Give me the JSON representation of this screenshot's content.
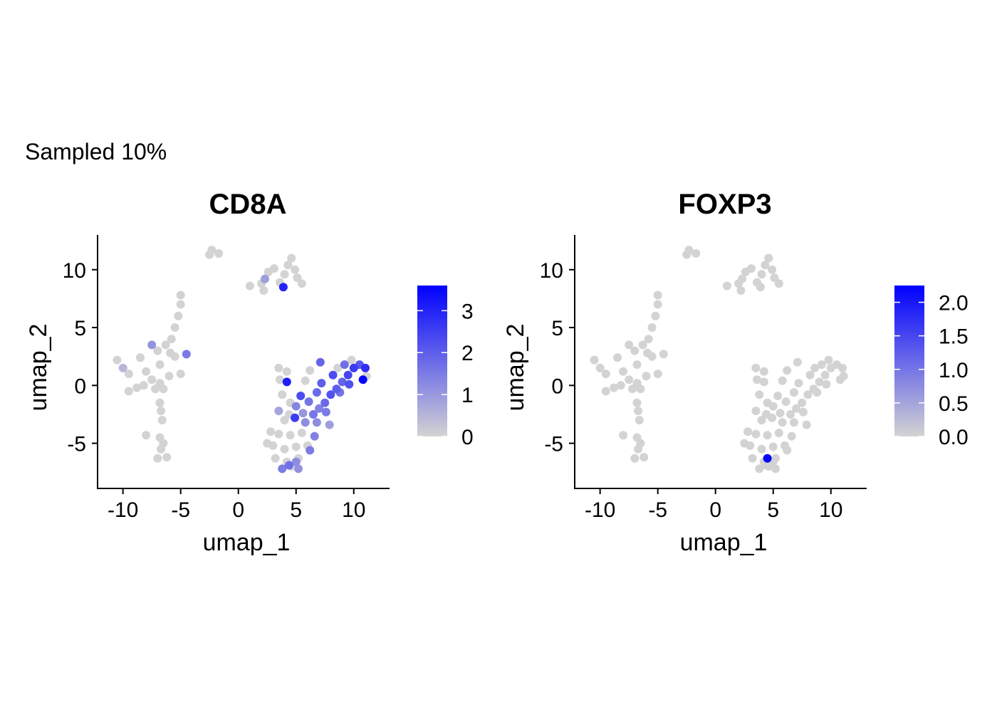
{
  "figure": {
    "caption": "Sampled 10%"
  },
  "colors": {
    "low": "#d3d3d3",
    "high": "#0000ff",
    "axis": "#000000",
    "text": "#000000"
  },
  "chart_data": [
    {
      "type": "scatter",
      "title": "CD8A",
      "xlabel": "umap_1",
      "ylabel": "umap_2",
      "xlim": [
        -12.2,
        13.1
      ],
      "ylim": [
        -8.9,
        13.0
      ],
      "xticks": [
        -10,
        -5,
        0,
        5,
        10
      ],
      "xtick_labels": [
        "-10",
        "-5",
        "0",
        "5",
        "10"
      ],
      "yticks": [
        -5,
        0,
        5,
        10
      ],
      "ytick_labels": [
        "-5",
        "0",
        "5",
        "10"
      ],
      "legend": {
        "placement": "right",
        "min": 0,
        "max": 3.6,
        "ticks": [
          0,
          1,
          2,
          3
        ],
        "tick_labels": [
          "0",
          "1",
          "2",
          "3"
        ]
      },
      "points": [
        [
          -8,
          1.2,
          0
        ],
        [
          -7.5,
          0.5,
          0
        ],
        [
          -6.8,
          1.8,
          0
        ],
        [
          -8.5,
          2.4,
          0
        ],
        [
          -9.5,
          1,
          0
        ],
        [
          -6,
          0.8,
          0
        ],
        [
          -7,
          3,
          0
        ],
        [
          -10,
          1.5,
          0.5
        ],
        [
          -7.2,
          -0.3,
          0
        ],
        [
          -8.8,
          -0.2,
          0
        ],
        [
          -6.5,
          -0.3,
          0
        ],
        [
          -5,
          1,
          0
        ],
        [
          -5.5,
          2.5,
          0
        ],
        [
          -10.5,
          2.2,
          0
        ],
        [
          -9.5,
          -0.5,
          0
        ],
        [
          -6.3,
          3.5,
          0
        ],
        [
          -4.5,
          2.7,
          1.5
        ],
        [
          -7.5,
          3.5,
          1.1
        ],
        [
          -8.2,
          0,
          0
        ],
        [
          -6.8,
          0.2,
          0
        ],
        [
          -6.8,
          -1.5,
          0
        ],
        [
          -6.6,
          -3,
          0
        ],
        [
          -6.8,
          -4.5,
          0
        ],
        [
          -6.7,
          -5.5,
          0
        ],
        [
          -7,
          -6.3,
          0
        ],
        [
          -6.2,
          -6.2,
          0
        ],
        [
          -6.5,
          -5,
          0
        ],
        [
          -8,
          -4.3,
          0
        ],
        [
          -6.7,
          -2.2,
          0
        ],
        [
          -5.8,
          4,
          0
        ],
        [
          -5.5,
          5,
          0
        ],
        [
          -5.2,
          6,
          0
        ],
        [
          -5,
          7,
          0
        ],
        [
          -5,
          7.8,
          0
        ],
        [
          -5.9,
          2.8,
          0
        ],
        [
          -2.3,
          11.7,
          0
        ],
        [
          -2.5,
          11.3,
          0
        ],
        [
          -1.7,
          11.4,
          0
        ],
        [
          1,
          8.6,
          0
        ],
        [
          2,
          8.8,
          0
        ],
        [
          2.3,
          9.2,
          0.9
        ],
        [
          2.6,
          9.8,
          0
        ],
        [
          3.1,
          10.1,
          0
        ],
        [
          3.6,
          8.9,
          0
        ],
        [
          4,
          9.6,
          0
        ],
        [
          4.3,
          10.4,
          0
        ],
        [
          4.6,
          11,
          0
        ],
        [
          4.9,
          10,
          0
        ],
        [
          5.1,
          9.3,
          0
        ],
        [
          3.9,
          8.5,
          3
        ],
        [
          2.2,
          8.2,
          0
        ],
        [
          5.5,
          8.8,
          0
        ],
        [
          3.5,
          1.5,
          0
        ],
        [
          3.6,
          0.5,
          0
        ],
        [
          4.2,
          1.2,
          0
        ],
        [
          3.8,
          -0.8,
          0
        ],
        [
          4.5,
          -1.5,
          0
        ],
        [
          4.4,
          -2.5,
          0
        ],
        [
          4,
          -3,
          0
        ],
        [
          2.8,
          -4,
          0
        ],
        [
          2.5,
          -5,
          0
        ],
        [
          3.5,
          -4.2,
          0
        ],
        [
          4.5,
          -4.3,
          0
        ],
        [
          5.5,
          -4.1,
          0
        ],
        [
          3,
          -5.2,
          0
        ],
        [
          4,
          -5.5,
          0
        ],
        [
          5,
          -5.3,
          0
        ],
        [
          6,
          -5.2,
          0
        ],
        [
          3.2,
          -6.3,
          0
        ],
        [
          4.2,
          -6.6,
          0
        ],
        [
          5.2,
          -6.3,
          0
        ],
        [
          4.6,
          -7,
          0
        ],
        [
          3.8,
          -7.2,
          1.5
        ],
        [
          5.2,
          -7.2,
          1.1
        ],
        [
          5.8,
          -3.2,
          1.2
        ],
        [
          6.5,
          -2.5,
          1.6
        ],
        [
          7,
          -2,
          1.4
        ],
        [
          7.5,
          -1.5,
          1.8
        ],
        [
          8,
          -0.8,
          2.2
        ],
        [
          8.5,
          -0.3,
          2
        ],
        [
          9,
          0.3,
          1.9
        ],
        [
          9.5,
          0.9,
          2.4
        ],
        [
          10,
          1.5,
          2.6
        ],
        [
          10.5,
          1.8,
          2.1
        ],
        [
          11,
          1.5,
          2.8
        ],
        [
          10.8,
          0.5,
          3.5
        ],
        [
          9.2,
          1.8,
          1.7
        ],
        [
          8.2,
          0.9,
          2.3
        ],
        [
          5,
          -1.8,
          1.3
        ],
        [
          6.1,
          -1.4,
          1.6
        ],
        [
          6.8,
          -0.6,
          1.8
        ],
        [
          7.2,
          0.2,
          2
        ],
        [
          5.4,
          -0.9,
          2.3
        ],
        [
          4.2,
          0.3,
          3.1
        ],
        [
          7.6,
          -2.3,
          1.5
        ],
        [
          6.8,
          -3.2,
          1.2
        ],
        [
          6.6,
          -4.4,
          1.4
        ],
        [
          6.2,
          -5.6,
          1.5
        ],
        [
          8.8,
          -0.6,
          1.6
        ],
        [
          9.6,
          0.1,
          2.2
        ],
        [
          4.9,
          -2.8,
          2.6
        ],
        [
          5.6,
          -2.4,
          1
        ],
        [
          3.5,
          -2.2,
          0.8
        ],
        [
          7.1,
          2,
          1.9
        ],
        [
          6.2,
          1.3,
          0
        ],
        [
          5.8,
          0.4,
          0
        ],
        [
          9.8,
          2.2,
          0
        ],
        [
          11.1,
          0.8,
          0
        ],
        [
          8.6,
          1.5,
          0
        ],
        [
          7.9,
          -3.4,
          0.9
        ],
        [
          5,
          -6.6,
          1.2
        ],
        [
          4.4,
          -6.9,
          1.7
        ]
      ]
    },
    {
      "type": "scatter",
      "title": "FOXP3",
      "xlabel": "umap_1",
      "ylabel": "umap_2",
      "xlim": [
        -12.2,
        13.1
      ],
      "ylim": [
        -8.9,
        13.0
      ],
      "xticks": [
        -10,
        -5,
        0,
        5,
        10
      ],
      "xtick_labels": [
        "-10",
        "-5",
        "0",
        "5",
        "10"
      ],
      "yticks": [
        -5,
        0,
        5,
        10
      ],
      "ytick_labels": [
        "-5",
        "0",
        "5",
        "10"
      ],
      "legend": {
        "placement": "right",
        "min": 0,
        "max": 2.25,
        "ticks": [
          0,
          0.5,
          1,
          1.5,
          2
        ],
        "tick_labels": [
          "0.0",
          "0.5",
          "1.0",
          "1.5",
          "2.0"
        ]
      },
      "points": [
        [
          -8,
          1.2,
          0
        ],
        [
          -7.5,
          0.5,
          0
        ],
        [
          -6.8,
          1.8,
          0
        ],
        [
          -8.5,
          2.4,
          0
        ],
        [
          -9.5,
          1,
          0
        ],
        [
          -6,
          0.8,
          0
        ],
        [
          -7,
          3,
          0
        ],
        [
          -10,
          1.5,
          0
        ],
        [
          -7.2,
          -0.3,
          0
        ],
        [
          -8.8,
          -0.2,
          0
        ],
        [
          -6.5,
          -0.3,
          0
        ],
        [
          -5,
          1,
          0
        ],
        [
          -5.5,
          2.5,
          0
        ],
        [
          -10.5,
          2.2,
          0
        ],
        [
          -9.5,
          -0.5,
          0
        ],
        [
          -6.3,
          3.5,
          0
        ],
        [
          -4.5,
          2.7,
          0
        ],
        [
          -7.5,
          3.5,
          0
        ],
        [
          -8.2,
          0,
          0
        ],
        [
          -6.8,
          0.2,
          0
        ],
        [
          -6.8,
          -1.5,
          0
        ],
        [
          -6.6,
          -3,
          0
        ],
        [
          -6.8,
          -4.5,
          0
        ],
        [
          -6.7,
          -5.5,
          0
        ],
        [
          -7,
          -6.3,
          0
        ],
        [
          -6.2,
          -6.2,
          0
        ],
        [
          -6.5,
          -5,
          0
        ],
        [
          -8,
          -4.3,
          0
        ],
        [
          -6.7,
          -2.2,
          0
        ],
        [
          -5.8,
          4,
          0
        ],
        [
          -5.5,
          5,
          0
        ],
        [
          -5.2,
          6,
          0
        ],
        [
          -5,
          7,
          0
        ],
        [
          -5,
          7.8,
          0
        ],
        [
          -5.9,
          2.8,
          0
        ],
        [
          -2.3,
          11.7,
          0
        ],
        [
          -2.5,
          11.3,
          0
        ],
        [
          -1.7,
          11.4,
          0
        ],
        [
          1,
          8.6,
          0
        ],
        [
          2,
          8.8,
          0
        ],
        [
          2.3,
          9.2,
          0
        ],
        [
          2.6,
          9.8,
          0
        ],
        [
          3.1,
          10.1,
          0
        ],
        [
          3.6,
          8.9,
          0
        ],
        [
          4,
          9.6,
          0
        ],
        [
          4.3,
          10.4,
          0
        ],
        [
          4.6,
          11,
          0
        ],
        [
          4.9,
          10,
          0
        ],
        [
          5.1,
          9.3,
          0
        ],
        [
          3.9,
          8.5,
          0
        ],
        [
          2.2,
          8.2,
          0
        ],
        [
          5.5,
          8.8,
          0
        ],
        [
          3.5,
          1.5,
          0
        ],
        [
          3.6,
          0.5,
          0
        ],
        [
          4.2,
          1.2,
          0
        ],
        [
          3.8,
          -0.8,
          0
        ],
        [
          4.5,
          -1.5,
          0
        ],
        [
          4.4,
          -2.5,
          0
        ],
        [
          4,
          -3,
          0
        ],
        [
          2.8,
          -4,
          0
        ],
        [
          2.5,
          -5,
          0
        ],
        [
          3.5,
          -4.2,
          0
        ],
        [
          4.5,
          -4.3,
          0
        ],
        [
          5.5,
          -4.1,
          0
        ],
        [
          3,
          -5.2,
          0
        ],
        [
          4,
          -5.5,
          0
        ],
        [
          5,
          -5.3,
          0
        ],
        [
          6,
          -5.2,
          0
        ],
        [
          3.2,
          -6.3,
          0
        ],
        [
          4.2,
          -6.6,
          0
        ],
        [
          5.2,
          -6.3,
          0
        ],
        [
          4.6,
          -7,
          0
        ],
        [
          3.8,
          -7.2,
          0
        ],
        [
          5.2,
          -7.2,
          0
        ],
        [
          5.8,
          -3.2,
          0
        ],
        [
          6.5,
          -2.5,
          0
        ],
        [
          7,
          -2,
          0
        ],
        [
          7.5,
          -1.5,
          0
        ],
        [
          8,
          -0.8,
          0
        ],
        [
          8.5,
          -0.3,
          0
        ],
        [
          9,
          0.3,
          0
        ],
        [
          9.5,
          0.9,
          0
        ],
        [
          10,
          1.5,
          0
        ],
        [
          10.5,
          1.8,
          0
        ],
        [
          11,
          1.5,
          0
        ],
        [
          10.8,
          0.5,
          0
        ],
        [
          9.2,
          1.8,
          0
        ],
        [
          8.2,
          0.9,
          0
        ],
        [
          5,
          -1.8,
          0
        ],
        [
          6.1,
          -1.4,
          0
        ],
        [
          6.8,
          -0.6,
          0
        ],
        [
          7.2,
          0.2,
          0
        ],
        [
          5.4,
          -0.9,
          0
        ],
        [
          4.2,
          0.3,
          0
        ],
        [
          7.6,
          -2.3,
          0
        ],
        [
          6.8,
          -3.2,
          0
        ],
        [
          6.6,
          -4.4,
          0
        ],
        [
          6.2,
          -5.6,
          0
        ],
        [
          8.8,
          -0.6,
          0
        ],
        [
          9.6,
          0.1,
          0
        ],
        [
          4.9,
          -2.8,
          0
        ],
        [
          5.6,
          -2.4,
          0
        ],
        [
          3.5,
          -2.2,
          0
        ],
        [
          7.1,
          2,
          0
        ],
        [
          6.2,
          1.3,
          0
        ],
        [
          5.8,
          0.4,
          0
        ],
        [
          9.8,
          2.2,
          0
        ],
        [
          11.1,
          0.8,
          0
        ],
        [
          8.6,
          1.5,
          0
        ],
        [
          7.9,
          -3.4,
          0
        ],
        [
          5,
          -6.6,
          0
        ],
        [
          4.4,
          -6.9,
          0
        ],
        [
          4.5,
          -6.3,
          2.2
        ]
      ]
    }
  ]
}
